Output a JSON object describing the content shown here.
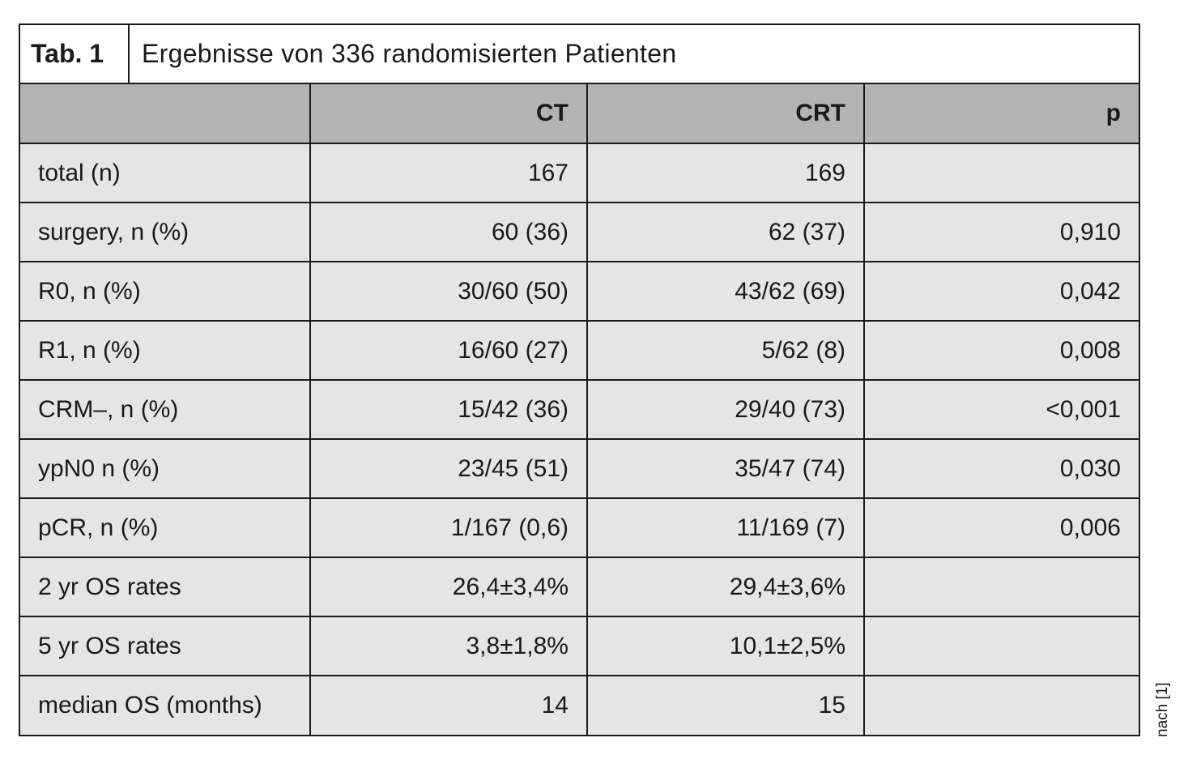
{
  "table": {
    "caption_label": "Tab. 1",
    "caption_title": "Ergebnisse von 336 randomisierten Patienten",
    "headers": [
      "",
      "CT",
      "CRT",
      "p"
    ],
    "rows": [
      [
        "total (n)",
        "167",
        "169",
        ""
      ],
      [
        "surgery, n (%)",
        "60 (36)",
        "62 (37)",
        "0,910"
      ],
      [
        "R0, n (%)",
        "30/60 (50)",
        "43/62 (69)",
        "0,042"
      ],
      [
        "R1, n (%)",
        "16/60 (27)",
        "5/62 (8)",
        "0,008"
      ],
      [
        "CRM–, n (%)",
        "15/42 (36)",
        "29/40 (73)",
        "<0,001"
      ],
      [
        "ypN0 n (%)",
        "23/45 (51)",
        "35/47 (74)",
        "0,030"
      ],
      [
        "pCR, n (%)",
        "1/167 (0,6)",
        "11/169 (7)",
        "0,006"
      ],
      [
        "2 yr OS rates",
        "26,4±3,4%",
        "29,4±3,6%",
        ""
      ],
      [
        "5 yr OS rates",
        "3,8±1,8%",
        "10,1±2,5%",
        ""
      ],
      [
        "median OS (months)",
        "14",
        "15",
        ""
      ]
    ]
  },
  "source_note": "nach [1]",
  "colors": {
    "header_bg": "#b3b3b3",
    "body_bg": "#e5e5e5",
    "border": "#1a1a1a"
  }
}
